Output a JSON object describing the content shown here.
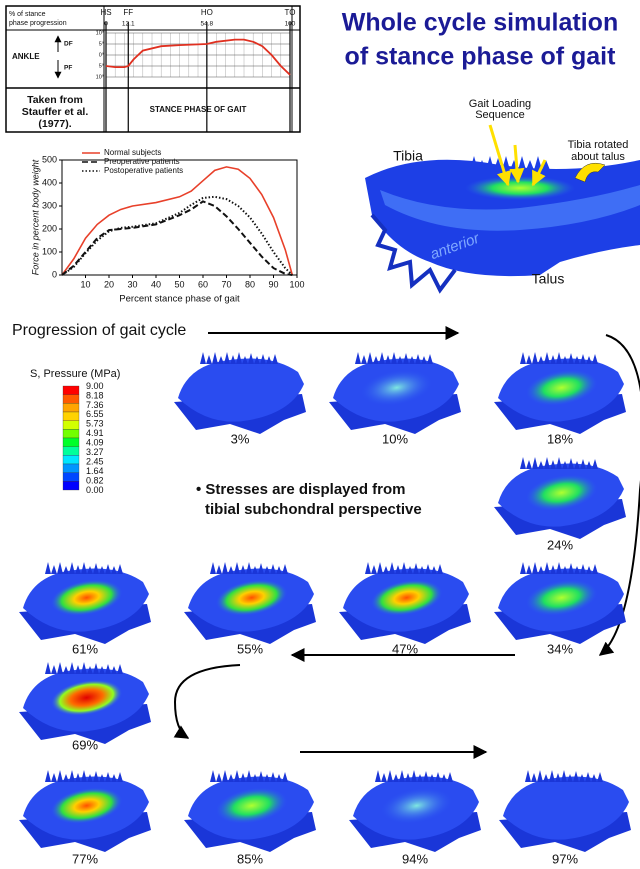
{
  "title_lines": [
    "Whole cycle simulation",
    "of stance phase of gait"
  ],
  "ankle_chart": {
    "type": "line",
    "header_label_lines": [
      "% of stance",
      "phase progression"
    ],
    "events": [
      {
        "name": "HS",
        "value": 0
      },
      {
        "name": "FF",
        "value": 12.1
      },
      {
        "name": "HO",
        "value": 54.8
      },
      {
        "name": "TO",
        "value": 100
      }
    ],
    "row_label": "ANKLE",
    "df_label": "DF",
    "pf_label": "PF",
    "xlim": [
      0,
      100
    ],
    "ylim": [
      -10,
      10
    ],
    "yticks": [
      {
        "value": 10,
        "label": "10°"
      },
      {
        "value": 5,
        "label": "5°"
      },
      {
        "value": 0,
        "label": "0°"
      },
      {
        "value": -5,
        "label": "5°"
      },
      {
        "value": -10,
        "label": "10°"
      }
    ],
    "series": [
      {
        "color": "#e03020",
        "x": [
          0,
          5,
          10,
          12.1,
          15,
          20,
          30,
          40,
          54.8,
          60,
          70,
          75,
          80,
          85,
          90,
          95,
          100
        ],
        "values": [
          -5,
          -5.5,
          -5.5,
          -5,
          -2,
          2,
          4,
          4.5,
          5,
          6,
          7,
          7,
          6,
          4,
          0,
          -5,
          -9
        ]
      }
    ],
    "source_lines": [
      "Taken from",
      "Stauffer et al.",
      "(1977)."
    ],
    "x_label": "STANCE PHASE OF GAIT"
  },
  "force_chart": {
    "type": "line",
    "y_label": "Force in percent body weight",
    "x_label": "Percent stance phase of gait",
    "xlim": [
      0,
      100
    ],
    "ylim": [
      0,
      500
    ],
    "xticks": [
      10,
      20,
      30,
      40,
      50,
      60,
      70,
      80,
      90,
      100
    ],
    "yticks": [
      0,
      100,
      200,
      300,
      400,
      500
    ],
    "x": [
      0,
      5,
      10,
      15,
      20,
      25,
      30,
      40,
      50,
      55,
      60,
      65,
      70,
      75,
      80,
      85,
      90,
      95,
      98
    ],
    "series": [
      {
        "name": "Normal subjects",
        "color": "#e8402a",
        "dash": "solid",
        "values": [
          0,
          70,
          160,
          220,
          260,
          285,
          300,
          315,
          340,
          365,
          410,
          455,
          470,
          460,
          420,
          350,
          250,
          110,
          0
        ]
      },
      {
        "name": "Preoperative patients",
        "color": "#111111",
        "dash": "dashed",
        "values": [
          0,
          40,
          100,
          160,
          195,
          200,
          205,
          220,
          260,
          285,
          320,
          300,
          255,
          200,
          140,
          80,
          30,
          5,
          0
        ]
      },
      {
        "name": "Postoperative patients",
        "color": "#111111",
        "dash": "dotted",
        "values": [
          0,
          35,
          95,
          150,
          190,
          205,
          210,
          225,
          270,
          305,
          335,
          340,
          330,
          300,
          250,
          180,
          100,
          30,
          0
        ]
      }
    ]
  },
  "figure_labels": {
    "loading_lines": [
      "Gait Loading",
      "Sequence"
    ],
    "tibia": "Tibia",
    "rotated_lines": [
      "Tibia rotated",
      "about talus"
    ],
    "anterior": "anterior",
    "talus": "Talus"
  },
  "progression": "Progression of gait cycle",
  "pressure_legend": {
    "title": "S, Pressure (MPa)",
    "levels": [
      {
        "value": 9,
        "label": "9.00"
      },
      {
        "value": 8.18,
        "label": "8.18"
      },
      {
        "value": 7.36,
        "label": "7.36"
      },
      {
        "value": 6.55,
        "label": "6.55"
      },
      {
        "value": 5.73,
        "label": "5.73"
      },
      {
        "value": 4.91,
        "label": "4.91"
      },
      {
        "value": 4.09,
        "label": "4.09"
      },
      {
        "value": 3.27,
        "label": "3.27"
      },
      {
        "value": 2.45,
        "label": "2.45"
      },
      {
        "value": 1.64,
        "label": "1.64"
      },
      {
        "value": 0.82,
        "label": "0.82"
      },
      {
        "value": 0,
        "label": "0.00"
      }
    ],
    "colors": [
      "#ff0000",
      "#ff5a00",
      "#ffa500",
      "#ffd200",
      "#d2ff00",
      "#73ff00",
      "#00ff28",
      "#00ff9b",
      "#00e6ff",
      "#0096ff",
      "#0046ff",
      "#0000ff"
    ]
  },
  "note_lines": [
    "• Stresses are displayed from",
    "tibial subchondral perspective"
  ],
  "frames": [
    "3%",
    "10%",
    "18%",
    "24%",
    "34%",
    "47%",
    "55%",
    "61%",
    "69%",
    "77%",
    "85%",
    "94%",
    "97%"
  ]
}
